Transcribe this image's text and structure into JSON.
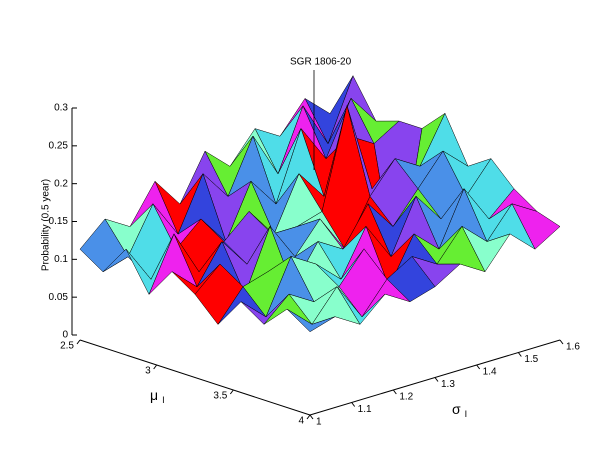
{
  "chart_data": {
    "type": "surface",
    "annotation": "SGR 1806-20",
    "zlabel": "Probability (0.5 year)",
    "xlabel": "μ",
    "xlabel_sub": "I",
    "ylabel": "σ",
    "ylabel_sub": "I",
    "x": [
      2.5,
      2.65,
      2.8,
      2.95,
      3.1,
      3.25,
      3.4,
      3.55,
      3.7,
      3.85,
      4
    ],
    "y": [
      1,
      1.06,
      1.12,
      1.18,
      1.24,
      1.3,
      1.36,
      1.42,
      1.48,
      1.54,
      1.6
    ],
    "z": [
      [
        0.12,
        0.1,
        0.14,
        0.09,
        0.13,
        0.11,
        0.08,
        0.12,
        0.1,
        0.13,
        0.11
      ],
      [
        0.15,
        0.11,
        0.09,
        0.16,
        0.1,
        0.14,
        0.12,
        0.09,
        0.13,
        0.1,
        0.12
      ],
      [
        0.13,
        0.17,
        0.12,
        0.1,
        0.15,
        0.09,
        0.13,
        0.16,
        0.11,
        0.14,
        0.1
      ],
      [
        0.18,
        0.12,
        0.15,
        0.13,
        0.11,
        0.17,
        0.1,
        0.14,
        0.12,
        0.09,
        0.13
      ],
      [
        0.14,
        0.19,
        0.11,
        0.16,
        0.14,
        0.12,
        0.15,
        0.11,
        0.16,
        0.13,
        0.11
      ],
      [
        0.2,
        0.15,
        0.18,
        0.12,
        0.14,
        0.16,
        0.13,
        0.17,
        0.1,
        0.15,
        0.12
      ],
      [
        0.17,
        0.22,
        0.14,
        0.19,
        0.15,
        0.11,
        0.18,
        0.12,
        0.16,
        0.13,
        0.14
      ],
      [
        0.21,
        0.16,
        0.23,
        0.15,
        0.28,
        0.17,
        0.14,
        0.19,
        0.13,
        0.17,
        0.12
      ],
      [
        0.19,
        0.24,
        0.18,
        0.22,
        0.16,
        0.21,
        0.18,
        0.15,
        0.2,
        0.14,
        0.16
      ],
      [
        0.23,
        0.18,
        0.25,
        0.2,
        0.03,
        0.19,
        0.22,
        0.17,
        0.15,
        0.18,
        0.13
      ],
      [
        0.2,
        0.26,
        0.21,
        0.22,
        0.22,
        0.25,
        0.19,
        0.21,
        0.18,
        0.16,
        0.15
      ]
    ],
    "xlim": [
      2.5,
      4
    ],
    "ylim": [
      1,
      1.6
    ],
    "zlim": [
      0,
      0.3
    ],
    "xticks": [
      2.5,
      3,
      3.5,
      4
    ],
    "yticks": [
      1,
      1.1,
      1.2,
      1.3,
      1.4,
      1.5,
      1.6
    ],
    "zticks": [
      0,
      0.05,
      0.1,
      0.15,
      0.2,
      0.25,
      0.3
    ],
    "colormap": [
      "#3344dd",
      "#8844ee",
      "#66ee33",
      "#4a90e8",
      "#88ffcc",
      "#4fdde8",
      "#ee22ee",
      "#ff0000"
    ]
  }
}
